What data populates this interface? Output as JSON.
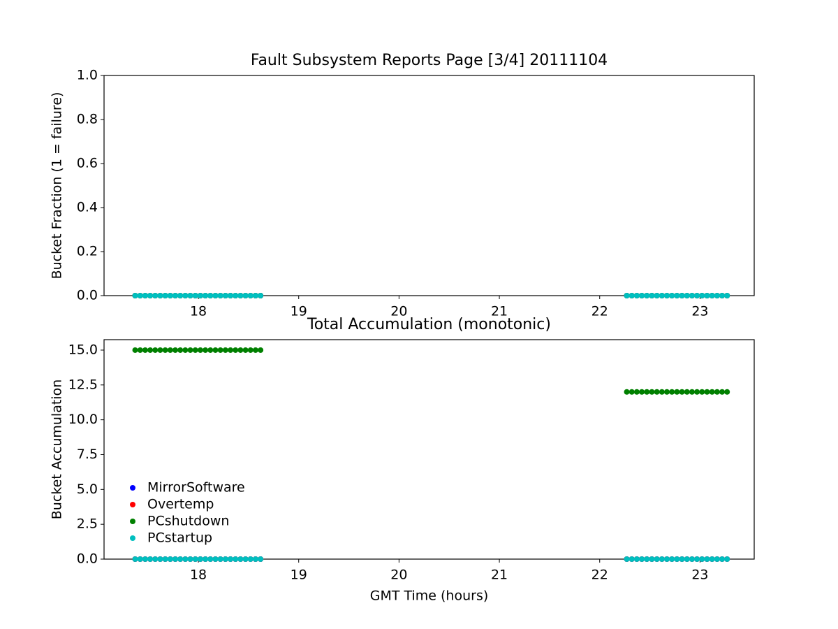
{
  "chart_data": [
    {
      "type": "scatter",
      "title": "Fault Subsystem Reports Page [3/4] 20111104",
      "ylabel": "Bucket Fraction (1 = failure)",
      "x": [
        17.37,
        17.42,
        17.47,
        17.52,
        17.57,
        17.62,
        17.67,
        17.72,
        17.77,
        17.82,
        17.87,
        17.92,
        17.97,
        18.02,
        18.07,
        18.12,
        18.17,
        18.22,
        18.27,
        18.32,
        18.37,
        18.42,
        18.47,
        18.52,
        18.57,
        18.62,
        22.27,
        22.32,
        22.37,
        22.42,
        22.47,
        22.52,
        22.57,
        22.62,
        22.67,
        22.72,
        22.77,
        22.82,
        22.87,
        22.92,
        22.97,
        23.02,
        23.07,
        23.12,
        23.17,
        23.22,
        23.27
      ],
      "series": [
        {
          "name": "MirrorSoftware",
          "color": "#0000ff",
          "values": [
            0,
            0,
            0,
            0,
            0,
            0,
            0,
            0,
            0,
            0,
            0,
            0,
            0,
            0,
            0,
            0,
            0,
            0,
            0,
            0,
            0,
            0,
            0,
            0,
            0,
            0,
            0,
            0,
            0,
            0,
            0,
            0,
            0,
            0,
            0,
            0,
            0,
            0,
            0,
            0,
            0,
            0,
            0,
            0,
            0,
            0,
            0
          ]
        },
        {
          "name": "Overtemp",
          "color": "#ff0000",
          "values": [
            0,
            0,
            0,
            0,
            0,
            0,
            0,
            0,
            0,
            0,
            0,
            0,
            0,
            0,
            0,
            0,
            0,
            0,
            0,
            0,
            0,
            0,
            0,
            0,
            0,
            0,
            0,
            0,
            0,
            0,
            0,
            0,
            0,
            0,
            0,
            0,
            0,
            0,
            0,
            0,
            0,
            0,
            0,
            0,
            0,
            0,
            0
          ]
        },
        {
          "name": "PCshutdown",
          "color": "#008000",
          "values": [
            0,
            0,
            0,
            0,
            0,
            0,
            0,
            0,
            0,
            0,
            0,
            0,
            0,
            0,
            0,
            0,
            0,
            0,
            0,
            0,
            0,
            0,
            0,
            0,
            0,
            0,
            0,
            0,
            0,
            0,
            0,
            0,
            0,
            0,
            0,
            0,
            0,
            0,
            0,
            0,
            0,
            0,
            0,
            0,
            0,
            0,
            0
          ]
        },
        {
          "name": "PCstartup",
          "color": "#00bfbf",
          "values": [
            0,
            0,
            0,
            0,
            0,
            0,
            0,
            0,
            0,
            0,
            0,
            0,
            0,
            0,
            0,
            0,
            0,
            0,
            0,
            0,
            0,
            0,
            0,
            0,
            0,
            0,
            0,
            0,
            0,
            0,
            0,
            0,
            0,
            0,
            0,
            0,
            0,
            0,
            0,
            0,
            0,
            0,
            0,
            0,
            0,
            0,
            0
          ]
        }
      ],
      "xlim": [
        17.06,
        23.54
      ],
      "xticks": [
        18,
        19,
        20,
        21,
        22,
        23
      ],
      "ylim": [
        0,
        1
      ],
      "yticks": [
        {
          "value": 0,
          "label": "0.0"
        },
        0.2,
        0.4,
        0.6,
        0.8,
        {
          "value": 1,
          "label": "1.0"
        }
      ]
    },
    {
      "type": "scatter",
      "title": "Total Accumulation (monotonic)",
      "xlabel": "GMT Time (hours)",
      "ylabel": "Bucket Accumulation",
      "x": [
        17.37,
        17.42,
        17.47,
        17.52,
        17.57,
        17.62,
        17.67,
        17.72,
        17.77,
        17.82,
        17.87,
        17.92,
        17.97,
        18.02,
        18.07,
        18.12,
        18.17,
        18.22,
        18.27,
        18.32,
        18.37,
        18.42,
        18.47,
        18.52,
        18.57,
        18.62,
        22.27,
        22.32,
        22.37,
        22.42,
        22.47,
        22.52,
        22.57,
        22.62,
        22.67,
        22.72,
        22.77,
        22.82,
        22.87,
        22.92,
        22.97,
        23.02,
        23.07,
        23.12,
        23.17,
        23.22,
        23.27
      ],
      "series": [
        {
          "name": "MirrorSoftware",
          "color": "#0000ff",
          "values": [
            0,
            0,
            0,
            0,
            0,
            0,
            0,
            0,
            0,
            0,
            0,
            0,
            0,
            0,
            0,
            0,
            0,
            0,
            0,
            0,
            0,
            0,
            0,
            0,
            0,
            0,
            0,
            0,
            0,
            0,
            0,
            0,
            0,
            0,
            0,
            0,
            0,
            0,
            0,
            0,
            0,
            0,
            0,
            0,
            0,
            0,
            0
          ]
        },
        {
          "name": "Overtemp",
          "color": "#ff0000",
          "values": [
            0,
            0,
            0,
            0,
            0,
            0,
            0,
            0,
            0,
            0,
            0,
            0,
            0,
            0,
            0,
            0,
            0,
            0,
            0,
            0,
            0,
            0,
            0,
            0,
            0,
            0,
            0,
            0,
            0,
            0,
            0,
            0,
            0,
            0,
            0,
            0,
            0,
            0,
            0,
            0,
            0,
            0,
            0,
            0,
            0,
            0,
            0
          ]
        },
        {
          "name": "PCshutdown",
          "color": "#008000",
          "values": [
            15,
            15,
            15,
            15,
            15,
            15,
            15,
            15,
            15,
            15,
            15,
            15,
            15,
            15,
            15,
            15,
            15,
            15,
            15,
            15,
            15,
            15,
            15,
            15,
            15,
            15,
            12,
            12,
            12,
            12,
            12,
            12,
            12,
            12,
            12,
            12,
            12,
            12,
            12,
            12,
            12,
            12,
            12,
            12,
            12,
            12,
            12
          ]
        },
        {
          "name": "PCstartup",
          "color": "#00bfbf",
          "values": [
            0,
            0,
            0,
            0,
            0,
            0,
            0,
            0,
            0,
            0,
            0,
            0,
            0,
            0,
            0,
            0,
            0,
            0,
            0,
            0,
            0,
            0,
            0,
            0,
            0,
            0,
            0,
            0,
            0,
            0,
            0,
            0,
            0,
            0,
            0,
            0,
            0,
            0,
            0,
            0,
            0,
            0,
            0,
            0,
            0,
            0,
            0
          ]
        }
      ],
      "xlim": [
        17.06,
        23.54
      ],
      "xticks": [
        18,
        19,
        20,
        21,
        22,
        23
      ],
      "ylim": [
        0,
        15.75
      ],
      "yticks": [
        {
          "value": 0,
          "label": "0.0"
        },
        2.5,
        {
          "value": 5,
          "label": "5.0"
        },
        7.5,
        {
          "value": 10,
          "label": "10.0"
        },
        12.5,
        {
          "value": 15,
          "label": "15.0"
        }
      ],
      "legend": "lower left"
    }
  ]
}
